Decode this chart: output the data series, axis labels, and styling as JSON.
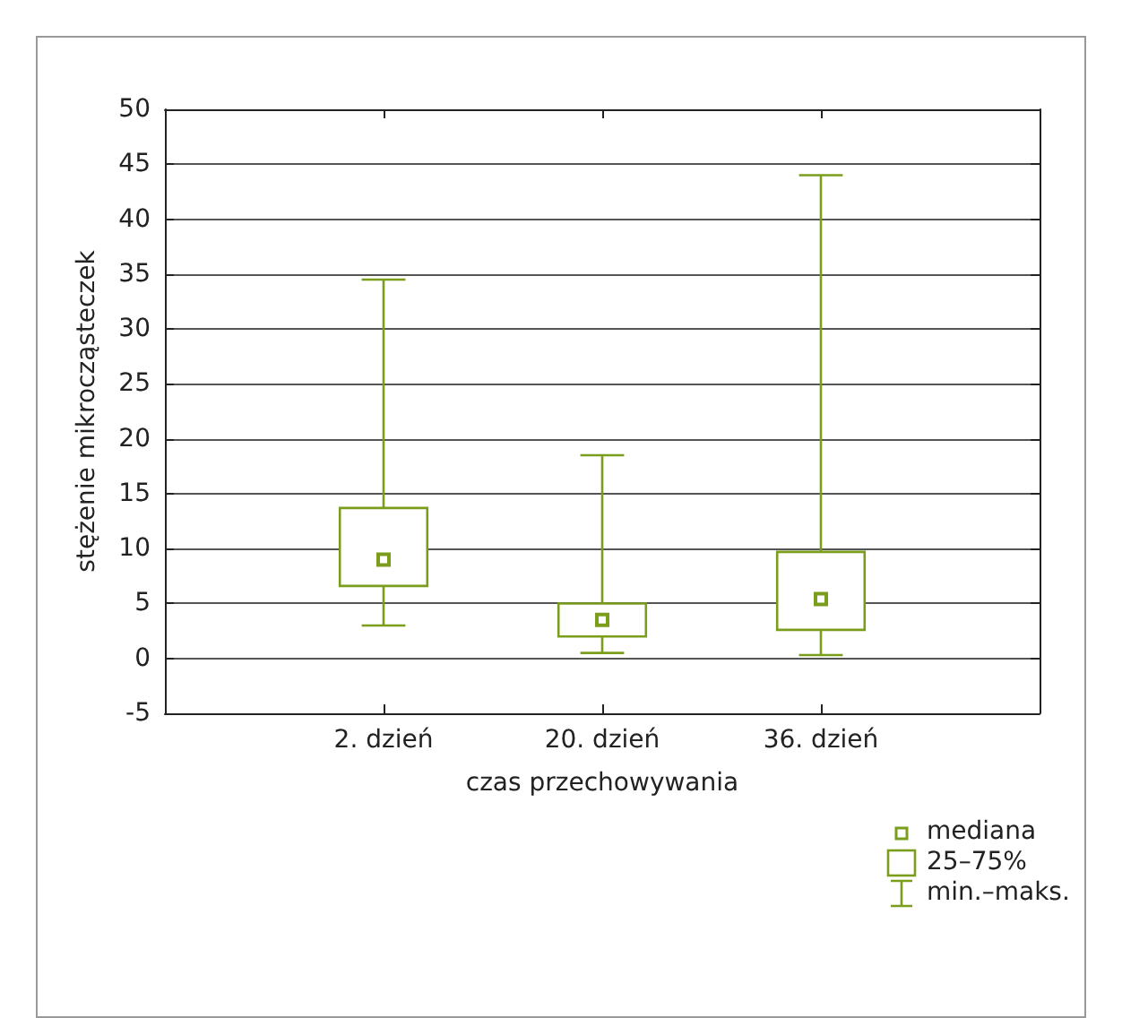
{
  "chart_data": {
    "type": "box",
    "xlabel": "czas przechowywania",
    "ylabel": "stężenie mikrocząsteczek",
    "categories": [
      "2. dzień",
      "20. dzień",
      "36. dzień"
    ],
    "series": [
      {
        "color": "#7a9e1c",
        "boxes": [
          {
            "low": 3,
            "q1": 6.6,
            "median": 9,
            "q3": 13.7,
            "high": 34.5
          },
          {
            "low": 0.5,
            "q1": 2,
            "median": 3.5,
            "q3": 5,
            "high": 18.5
          },
          {
            "low": 0.3,
            "q1": 2.6,
            "median": 5.4,
            "q3": 9.7,
            "high": 44
          }
        ]
      }
    ],
    "ylim": [
      -5,
      50
    ],
    "yticks": [
      -5,
      0,
      5,
      10,
      15,
      20,
      25,
      30,
      35,
      40,
      45,
      50
    ],
    "grid": "y",
    "marker": "square",
    "annotations": [
      "mediana",
      "25–75%",
      "min.–maks."
    ]
  }
}
